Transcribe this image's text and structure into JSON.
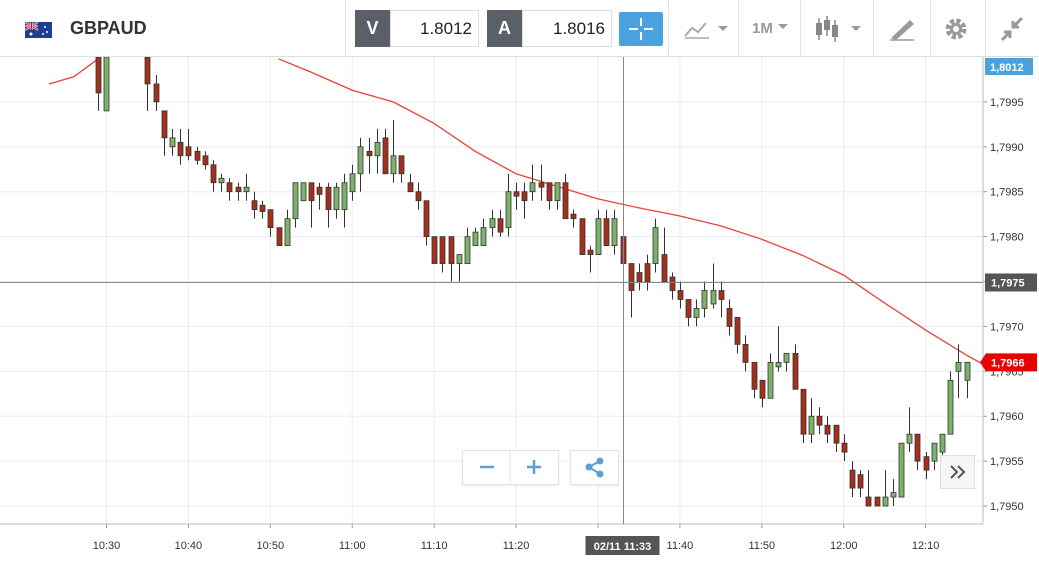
{
  "toolbar": {
    "symbol": "GBPAUD",
    "bid_label": "V",
    "bid": "1.8012",
    "ask_label": "A",
    "ask": "1.8016",
    "timeframe": "1M"
  },
  "chart_data": {
    "type": "candlestick",
    "x": [
      "10:29",
      "10:30",
      "10:35",
      "10:36",
      "10:37",
      "10:38",
      "10:39",
      "10:40",
      "10:41",
      "10:42",
      "10:43",
      "10:44",
      "10:45",
      "10:46",
      "10:47",
      "10:48",
      "10:49",
      "10:50",
      "10:51",
      "10:52",
      "10:53",
      "10:54",
      "10:55",
      "10:56",
      "10:57",
      "10:58",
      "10:59",
      "11:00",
      "11:01",
      "11:02",
      "11:03",
      "11:04",
      "11:05",
      "11:06",
      "11:07",
      "11:08",
      "11:09",
      "11:10",
      "11:11",
      "11:12",
      "11:13",
      "11:14",
      "11:15",
      "11:16",
      "11:17",
      "11:18",
      "11:19",
      "11:20",
      "11:21",
      "11:22",
      "11:23",
      "11:24",
      "11:25",
      "11:26",
      "11:27",
      "11:28",
      "11:29",
      "11:30",
      "11:31",
      "11:32",
      "11:33",
      "11:34",
      "11:35",
      "11:36",
      "11:37",
      "11:38",
      "11:39",
      "11:40",
      "11:41",
      "11:42",
      "11:43",
      "11:44",
      "11:45",
      "11:46",
      "11:47",
      "11:48",
      "11:49",
      "11:50",
      "11:51",
      "11:52",
      "11:53",
      "11:54",
      "11:55",
      "11:56",
      "11:57",
      "11:58",
      "11:59",
      "12:00",
      "12:01",
      "12:02",
      "12:03",
      "12:04",
      "12:05",
      "12:06",
      "12:07",
      "12:08",
      "12:09",
      "12:10",
      "12:11",
      "12:12",
      "12:13",
      "12:14",
      "12:15"
    ],
    "open": [
      1.8,
      1.7994,
      1.8,
      1.7997,
      1.7994,
      1.799,
      1.79905,
      1.799,
      1.79895,
      1.7989,
      1.7988,
      1.7986,
      1.7986,
      1.79855,
      1.7985,
      1.7984,
      1.79835,
      1.7983,
      1.7981,
      1.7979,
      1.7982,
      1.7984,
      1.7986,
      1.79855,
      1.79855,
      1.7983,
      1.7983,
      1.7985,
      1.7987,
      1.79895,
      1.7989,
      1.7991,
      1.7987,
      1.7989,
      1.7986,
      1.7985,
      1.7984,
      1.798,
      1.798,
      1.798,
      1.7977,
      1.7977,
      1.7979,
      1.7979,
      1.7981,
      1.7982,
      1.7981,
      1.7985,
      1.7985,
      1.7985,
      1.7986,
      1.7986,
      1.7984,
      1.7986,
      1.79825,
      1.7982,
      1.79785,
      1.7978,
      1.7982,
      1.7979,
      1.798,
      1.7977,
      1.7976,
      1.7977,
      1.7977,
      1.7978,
      1.79755,
      1.7974,
      1.7973,
      1.7971,
      1.7972,
      1.79725,
      1.7974,
      1.7972,
      1.7971,
      1.7968,
      1.7966,
      1.7964,
      1.7962,
      1.79655,
      1.7966,
      1.7967,
      1.7963,
      1.7958,
      1.796,
      1.7959,
      1.7959,
      1.7957,
      1.7954,
      1.79535,
      1.7951,
      1.7951,
      1.795,
      1.7951,
      1.7951,
      1.7957,
      1.7958,
      1.79555,
      1.7955,
      1.7956,
      1.7958,
      1.7965,
      1.7964
    ],
    "high": [
      1.8,
      1.8,
      1.8,
      1.7998,
      1.7994,
      1.7992,
      1.7992,
      1.7992,
      1.799,
      1.79895,
      1.79885,
      1.7987,
      1.79865,
      1.7986,
      1.7987,
      1.7985,
      1.7984,
      1.7983,
      1.7981,
      1.7983,
      1.7986,
      1.7986,
      1.7986,
      1.7986,
      1.7986,
      1.7986,
      1.7987,
      1.7988,
      1.7991,
      1.7991,
      1.7992,
      1.7992,
      1.7993,
      1.7989,
      1.7987,
      1.7986,
      1.7984,
      1.798,
      1.798,
      1.798,
      1.7978,
      1.7981,
      1.7981,
      1.7982,
      1.7983,
      1.7983,
      1.7987,
      1.7986,
      1.7986,
      1.7988,
      1.7988,
      1.7986,
      1.7986,
      1.7987,
      1.7983,
      1.7982,
      1.7979,
      1.7983,
      1.7983,
      1.7983,
      1.798,
      1.7977,
      1.7977,
      1.7978,
      1.7982,
      1.7981,
      1.7976,
      1.7975,
      1.7973,
      1.7973,
      1.7975,
      1.7977,
      1.7975,
      1.7973,
      1.7971,
      1.7969,
      1.7966,
      1.7964,
      1.7967,
      1.797,
      1.7967,
      1.7968,
      1.7963,
      1.7962,
      1.7961,
      1.796,
      1.7959,
      1.7958,
      1.7955,
      1.7954,
      1.7954,
      1.7951,
      1.7954,
      1.7953,
      1.7957,
      1.7961,
      1.7958,
      1.7956,
      1.7957,
      1.7958,
      1.7965,
      1.7968,
      1.7966
    ],
    "low": [
      1.7994,
      1.7994,
      1.7994,
      1.7994,
      1.7989,
      1.7989,
      1.7988,
      1.79885,
      1.7988,
      1.79875,
      1.7985,
      1.7985,
      1.7984,
      1.7984,
      1.7984,
      1.7982,
      1.7982,
      1.798,
      1.7979,
      1.7979,
      1.7981,
      1.7984,
      1.7981,
      1.7983,
      1.7981,
      1.7982,
      1.7981,
      1.7984,
      1.7985,
      1.7987,
      1.7987,
      1.7987,
      1.7986,
      1.7986,
      1.7985,
      1.7983,
      1.7979,
      1.7977,
      1.7976,
      1.7975,
      1.7975,
      1.7977,
      1.7979,
      1.7979,
      1.798,
      1.798,
      1.798,
      1.7983,
      1.7982,
      1.7984,
      1.7984,
      1.7983,
      1.7983,
      1.7982,
      1.7981,
      1.7978,
      1.7976,
      1.7978,
      1.7979,
      1.7978,
      1.7976,
      1.7971,
      1.7974,
      1.7974,
      1.7976,
      1.7975,
      1.7973,
      1.7972,
      1.797,
      1.797,
      1.7971,
      1.7972,
      1.7971,
      1.7969,
      1.7967,
      1.7965,
      1.7962,
      1.7961,
      1.7962,
      1.7965,
      1.7965,
      1.7963,
      1.7957,
      1.7957,
      1.7958,
      1.7957,
      1.7956,
      1.7955,
      1.7951,
      1.7951,
      1.795,
      1.795,
      1.795,
      1.795,
      1.7951,
      1.7956,
      1.7954,
      1.7953,
      1.7954,
      1.7955,
      1.7958,
      1.7962,
      1.7962
    ],
    "close": [
      1.7996,
      1.8,
      1.7997,
      1.7995,
      1.7991,
      1.7991,
      1.7989,
      1.7989,
      1.79885,
      1.7988,
      1.7986,
      1.79865,
      1.7985,
      1.7985,
      1.79855,
      1.7983,
      1.79828,
      1.7981,
      1.7979,
      1.7982,
      1.7986,
      1.7986,
      1.7984,
      1.79847,
      1.7983,
      1.79855,
      1.7986,
      1.7987,
      1.799,
      1.7989,
      1.79905,
      1.7987,
      1.7989,
      1.7987,
      1.7985,
      1.7984,
      1.798,
      1.7977,
      1.7977,
      1.7977,
      1.7978,
      1.798,
      1.79805,
      1.7981,
      1.7982,
      1.79805,
      1.7985,
      1.79845,
      1.7984,
      1.7986,
      1.79855,
      1.7984,
      1.7986,
      1.7982,
      1.7982,
      1.7978,
      1.7978,
      1.7982,
      1.7979,
      1.7982,
      1.7977,
      1.7974,
      1.7975,
      1.7975,
      1.7981,
      1.7975,
      1.7974,
      1.7973,
      1.7971,
      1.7972,
      1.7974,
      1.7974,
      1.7973,
      1.797,
      1.7968,
      1.7966,
      1.7963,
      1.7962,
      1.7966,
      1.7966,
      1.7967,
      1.7963,
      1.7958,
      1.796,
      1.7959,
      1.7958,
      1.7957,
      1.7956,
      1.7952,
      1.7952,
      1.795,
      1.795,
      1.7951,
      1.79515,
      1.7957,
      1.7958,
      1.7955,
      1.7954,
      1.7957,
      1.7958,
      1.7964,
      1.7966,
      1.7966
    ],
    "up_color": "#7cb36a",
    "down_color": "#a3301c",
    "line": {
      "color": "#e8413a",
      "x": [
        "10:23",
        "10:26",
        "10:29",
        "10:30",
        "10:51",
        "10:55",
        "11:00",
        "11:05",
        "11:10",
        "11:15",
        "11:20",
        "11:25",
        "11:30",
        "11:35",
        "11:40",
        "11:45",
        "11:50",
        "11:55",
        "12:00",
        "12:05",
        "12:10",
        "12:15",
        "12:17"
      ],
      "values": [
        1.7997,
        1.79978,
        1.79998,
        null,
        1.79998,
        1.79983,
        1.79963,
        1.7995,
        1.79926,
        1.79895,
        1.7987,
        1.79856,
        1.79842,
        1.79832,
        1.79823,
        1.79812,
        1.79797,
        1.79779,
        1.79757,
        1.79726,
        1.79696,
        1.79668,
        1.79658
      ]
    },
    "xlim": [
      "10:17",
      "12:17"
    ],
    "xticks": [
      "10:30",
      "10:40",
      "10:50",
      "11:00",
      "11:10",
      "11:20",
      "11:30",
      "11:40",
      "11:50",
      "12:00",
      "12:10"
    ],
    "ylim": [
      1.7948,
      1.8
    ],
    "yticks": [
      {
        "value": 1.795,
        "label": "1,7950"
      },
      {
        "value": 1.7955,
        "label": "1,7955"
      },
      {
        "value": 1.796,
        "label": "1,7960"
      },
      {
        "value": 1.7965,
        "label": "1,7965"
      },
      {
        "value": 1.797,
        "label": "1,7970"
      },
      {
        "value": 1.7975,
        "label": "1,7975"
      },
      {
        "value": 1.798,
        "label": "1,7980"
      },
      {
        "value": 1.7985,
        "label": "1,7985"
      },
      {
        "value": 1.799,
        "label": "1,7990"
      },
      {
        "value": 1.7995,
        "label": "1,7995"
      }
    ],
    "grid": true,
    "bid_marker": {
      "label": "1,8012",
      "color": "#4aa3df"
    },
    "last_marker": {
      "value": 1.7966,
      "label": "1,7966",
      "color": "#e80000"
    },
    "crosshair": {
      "time": "11:33",
      "price": 1.7975,
      "time_label": "02/11 11:33",
      "price_label": "1,7975"
    }
  }
}
